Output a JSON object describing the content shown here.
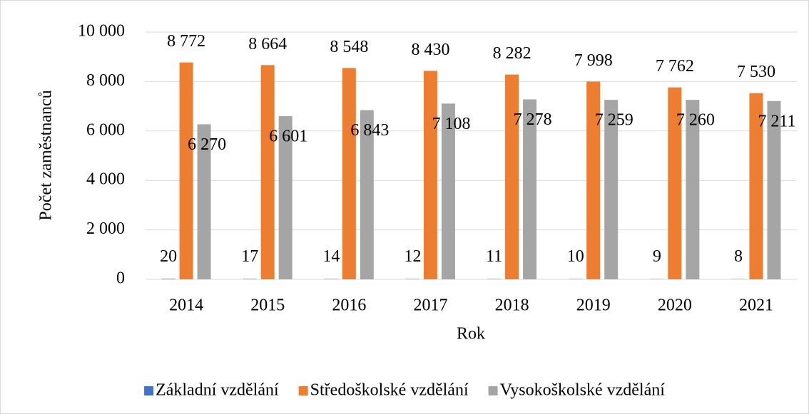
{
  "chart_data": {
    "type": "bar",
    "x_label": "Rok",
    "y_label": "Počet zaměstnanců",
    "categories": [
      "2014",
      "2015",
      "2016",
      "2017",
      "2018",
      "2019",
      "2020",
      "2021"
    ],
    "series": [
      {
        "name": "Základní vzdělání",
        "color": "#4472c4",
        "values": [
          20,
          17,
          14,
          12,
          11,
          10,
          9,
          8
        ]
      },
      {
        "name": "Středoškolské vzdělání",
        "color": "#ed7d31",
        "values": [
          8772,
          8664,
          8548,
          8430,
          8282,
          7998,
          7762,
          7530
        ],
        "value_labels": [
          "8 772",
          "8 664",
          "8 548",
          "8 430",
          "8 282",
          "7 998",
          "7 762",
          "7 530"
        ]
      },
      {
        "name": "Vysokoškolské vzdělání",
        "color": "#a5a5a5",
        "values": [
          6270,
          6601,
          6843,
          7108,
          7278,
          7259,
          7260,
          7211
        ],
        "value_labels": [
          "6 270",
          "6 601",
          "6 843",
          "7 108",
          "7 278",
          "7 259",
          "7 260",
          "7 211"
        ]
      }
    ],
    "ylim": [
      0,
      10000
    ],
    "yticks": [
      0,
      {
        "value": 2000,
        "label": "2 000"
      },
      {
        "value": 4000,
        "label": "4 000"
      },
      {
        "value": 6000,
        "label": "6 000"
      },
      {
        "value": 8000,
        "label": "8 000"
      },
      {
        "value": 10000,
        "label": "10 000"
      }
    ],
    "grid": true,
    "legend": "bottom"
  }
}
